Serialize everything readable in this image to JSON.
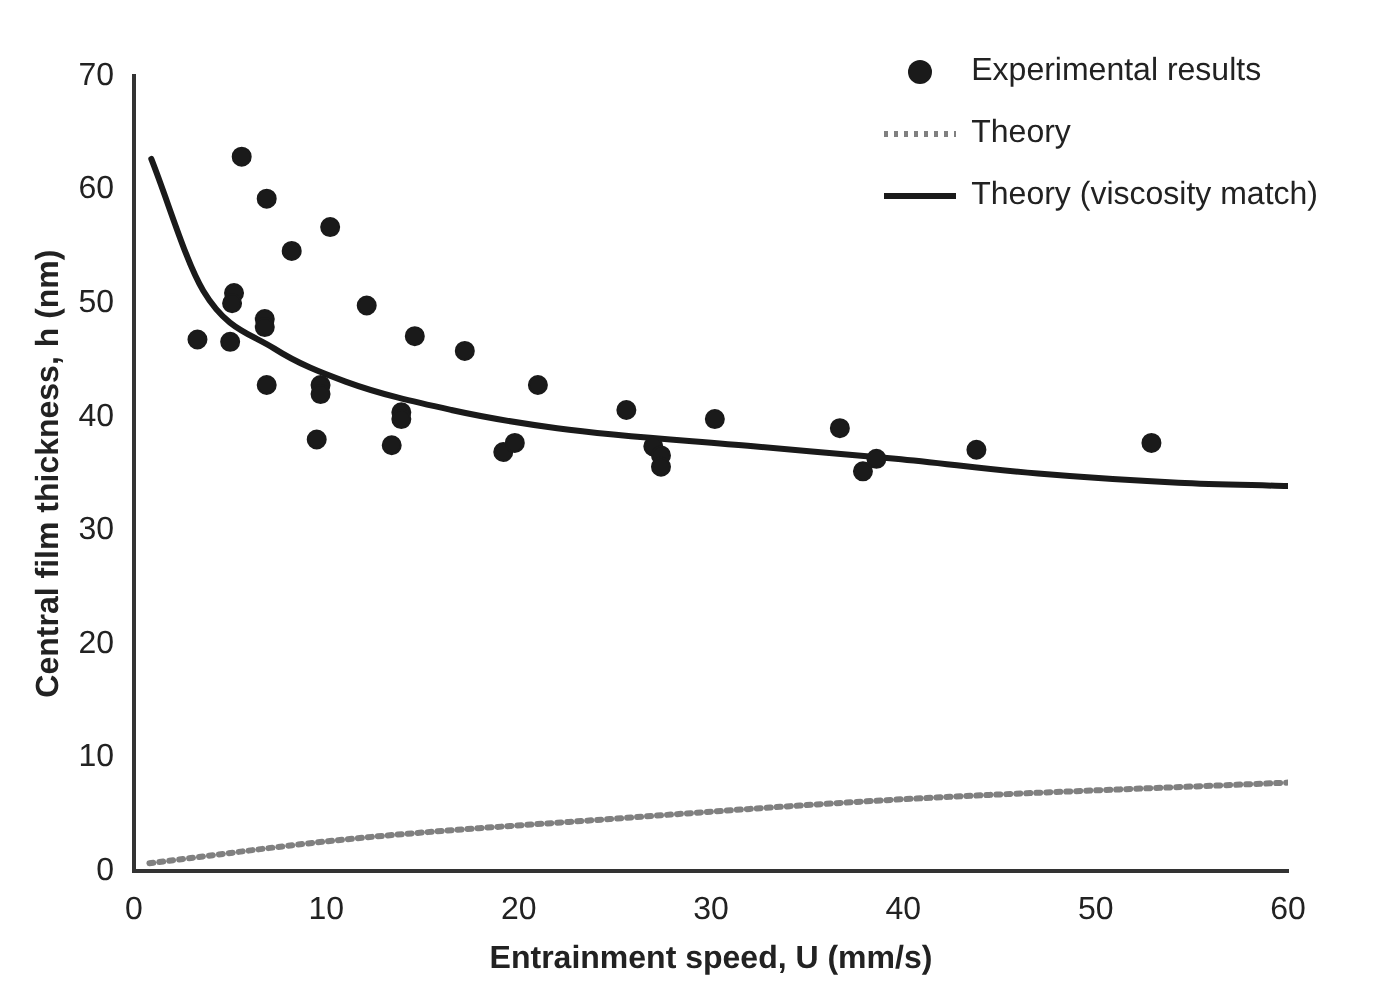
{
  "chart_data": {
    "type": "scatter",
    "xlabel": "Entrainment speed, U (mm/s)",
    "ylabel": "Central film thickness, h (nm)",
    "xlim": [
      0,
      60
    ],
    "xticks": [
      0,
      10,
      20,
      30,
      40,
      50,
      60
    ],
    "ylim": [
      0,
      70
    ],
    "yticks": [
      0,
      10,
      20,
      30,
      40,
      50,
      60,
      70
    ],
    "legend": "top right",
    "series": [
      {
        "name": "Experimental results",
        "type": "scatter",
        "marker": "circle",
        "color": "#1a1a1a",
        "x": [
          5.6,
          6.9,
          10.2,
          8.2,
          5.2,
          5.1,
          12.1,
          6.8,
          6.8,
          3.3,
          5.0,
          14.6,
          17.2,
          6.9,
          9.7,
          9.7,
          21.0,
          13.9,
          13.9,
          25.6,
          9.5,
          13.4,
          19.2,
          19.8,
          30.2,
          27.0,
          27.4,
          27.4,
          36.7,
          38.6,
          37.9,
          43.8,
          52.9
        ],
        "values": [
          62.9,
          59.2,
          56.7,
          54.6,
          50.9,
          50.0,
          49.8,
          48.6,
          47.9,
          46.8,
          46.6,
          47.1,
          45.8,
          42.8,
          42.8,
          42.0,
          42.8,
          40.4,
          39.8,
          40.6,
          38.0,
          37.5,
          36.9,
          37.7,
          39.8,
          37.4,
          36.6,
          35.6,
          39.0,
          36.3,
          35.2,
          37.1,
          37.7
        ]
      },
      {
        "name": "Theory",
        "type": "line",
        "line_style": "dotted",
        "marker": "none",
        "color": "#808080",
        "x": [
          0.8,
          11.0,
          24.8,
          39.6,
          60
        ],
        "values": [
          0.7,
          2.8,
          4.6,
          6.3,
          7.8
        ]
      },
      {
        "name": "Theory (viscosity match)",
        "type": "line",
        "line_style": "solid",
        "marker": "none",
        "color": "#1a1a1a",
        "x": [
          0.9,
          3.6,
          7.3,
          11.0,
          16.5,
          22.0,
          32.2,
          39.6,
          47.0,
          54.3,
          60
        ],
        "values": [
          62.7,
          51.1,
          46.0,
          43.1,
          40.6,
          39.0,
          37.4,
          36.3,
          35.0,
          34.2,
          33.9
        ]
      }
    ]
  }
}
